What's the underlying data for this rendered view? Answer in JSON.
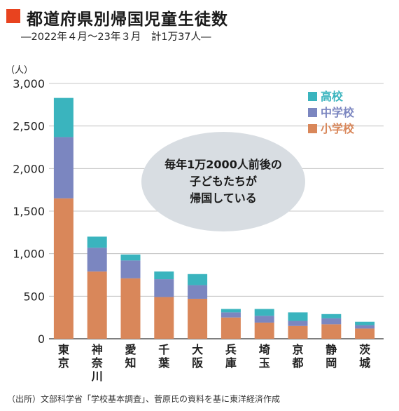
{
  "header": {
    "title": "都道府県別帰国児童生徒数",
    "subtitle": "―2022年４月～23年３月　計1万37人―",
    "accent_color": "#e8431f"
  },
  "annotation": {
    "text": "毎年1万2000人前後の\n子どもたちが\n帰国している"
  },
  "source": "（出所）文部科学省「学校基本調査」、菅原氏の資料を基に東洋経済作成",
  "chart_data": {
    "type": "bar",
    "stacked": true,
    "ylabel": "（人）",
    "ylim": [
      0,
      3000
    ],
    "yticks": [
      0,
      500,
      1000,
      1500,
      2000,
      2500,
      3000
    ],
    "ytick_labels": [
      "0",
      "500",
      "1,000",
      "1,500",
      "2,000",
      "2,500",
      "3,000"
    ],
    "grid": true,
    "legend_position": "top-right",
    "categories": [
      "東京",
      "神奈川",
      "愛知",
      "千葉",
      "大阪",
      "兵庫",
      "埼玉",
      "京都",
      "静岡",
      "茨城"
    ],
    "series": [
      {
        "name": "小学校",
        "color": "#d9875a",
        "values": [
          1650,
          790,
          710,
          490,
          470,
          250,
          190,
          150,
          170,
          120
        ]
      },
      {
        "name": "中学校",
        "color": "#7b86c0",
        "values": [
          720,
          280,
          210,
          210,
          160,
          60,
          80,
          60,
          70,
          40
        ]
      },
      {
        "name": "高校",
        "color": "#3ab4be",
        "values": [
          460,
          130,
          70,
          90,
          130,
          40,
          80,
          100,
          50,
          40
        ]
      }
    ]
  }
}
